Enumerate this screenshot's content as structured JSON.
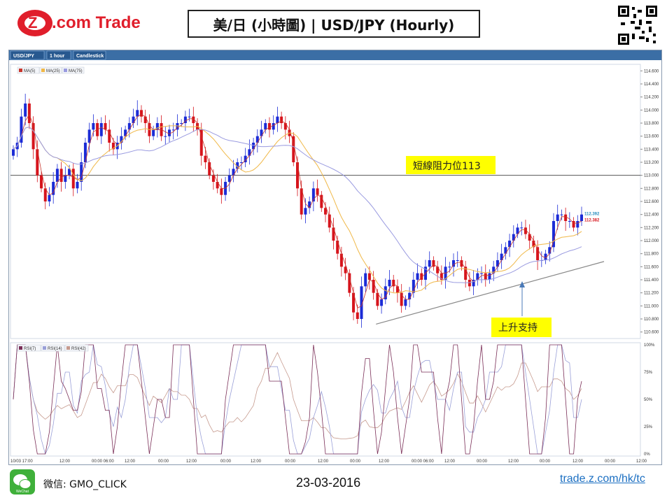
{
  "header": {
    "brand_logo_text": "Z.com Trade",
    "title": "美/日 (小時圖) | USD/JPY (Hourly)"
  },
  "toolbar": {
    "tabs": [
      "USD/JPY",
      "1 hour",
      "Candlestick"
    ]
  },
  "legend": {
    "ma": [
      "MA(5)",
      "MA(25)",
      "MA(75)"
    ],
    "rsi": [
      "RSI(7)",
      "RSI(14)",
      "RSI(42)"
    ]
  },
  "annotations": {
    "resistance": "短線阻力位113",
    "support": "上升支持"
  },
  "price_tags": {
    "upper": "112.392",
    "lower": "112.382"
  },
  "footer": {
    "wechat_label": "微信: GMO_CLICK",
    "wechat_icon_text": "WeChat",
    "date": "23-03-2016",
    "site": "trade.z.com/hk/tc"
  },
  "colors": {
    "up": "#1b2bd6",
    "down": "#d6141c",
    "ma5": "#c8362c",
    "ma25": "#f0b848",
    "ma75": "#9a9be0",
    "resistance_line": "#555555",
    "support_line": "#888888",
    "annotation_bg": "#ffff00",
    "price_tag_up": "#2a8fbf",
    "price_tag_down": "#d6141c",
    "rsi7": "#7a2e57",
    "rsi14": "#9aa0d8",
    "rsi42": "#c69a8e"
  },
  "chart_data": {
    "type": "candlestick",
    "title": "USD/JPY",
    "timeframe": "1 hour",
    "y_ticks": [
      "114.600",
      "114.400",
      "114.200",
      "114.000",
      "113.800",
      "113.600",
      "113.400",
      "113.200",
      "113.000",
      "112.800",
      "112.600",
      "112.400",
      "112.200",
      "112.000",
      "111.800",
      "111.600",
      "111.400",
      "111.200",
      "111.000",
      "110.800",
      "110.600"
    ],
    "y_range": [
      110.5,
      114.7
    ],
    "x_labels": [
      "10/03 17:00",
      "12:00",
      "00:00 06:00",
      "12:00",
      "00:00",
      "12:00",
      "00:00",
      "12:00",
      "00:00",
      "12:00",
      "00:00",
      "12:00",
      "00:00 06:00",
      "12:00",
      "00:00",
      "12:00",
      "00:00",
      "12:00",
      "00:00",
      "12:00"
    ],
    "resistance_level": 113.0,
    "support_line": {
      "from": [
        110.72,
        "bar 95"
      ],
      "to": [
        111.67,
        "bar 170"
      ]
    },
    "close": [
      113.4,
      113.5,
      113.9,
      114.1,
      113.8,
      113.4,
      113.0,
      112.8,
      112.6,
      112.7,
      112.9,
      113.1,
      112.9,
      113.0,
      113.1,
      112.8,
      112.9,
      113.2,
      113.5,
      113.7,
      113.8,
      113.6,
      113.8,
      113.7,
      113.5,
      113.4,
      113.5,
      113.6,
      113.7,
      113.8,
      113.9,
      114.0,
      113.9,
      113.8,
      113.6,
      113.7,
      113.8,
      113.6,
      113.6,
      113.7,
      113.7,
      113.8,
      113.8,
      113.9,
      113.9,
      113.8,
      113.7,
      113.3,
      113.2,
      113.0,
      112.9,
      112.8,
      112.7,
      112.9,
      113.0,
      113.1,
      113.2,
      113.2,
      113.3,
      113.4,
      113.5,
      113.6,
      113.7,
      113.8,
      113.7,
      113.8,
      113.9,
      113.8,
      113.7,
      113.6,
      113.2,
      112.8,
      112.4,
      112.5,
      112.6,
      112.8,
      112.7,
      112.5,
      112.4,
      112.2,
      112.0,
      111.8,
      111.6,
      111.5,
      111.2,
      110.9,
      110.8,
      111.3,
      111.5,
      111.4,
      111.2,
      111.0,
      111.1,
      111.3,
      111.4,
      111.3,
      111.2,
      111.0,
      111.1,
      111.2,
      111.4,
      111.5,
      111.4,
      111.6,
      111.7,
      111.6,
      111.5,
      111.4,
      111.6,
      111.6,
      111.7,
      111.7,
      111.6,
      111.4,
      111.3,
      111.4,
      111.5,
      111.5,
      111.4,
      111.5,
      111.6,
      111.7,
      111.8,
      111.9,
      112.0,
      112.1,
      112.2,
      112.2,
      112.1,
      112.0,
      111.9,
      111.7,
      111.7,
      111.8,
      111.9,
      112.3,
      112.4,
      112.4,
      112.3,
      112.3,
      112.2,
      112.3,
      112.4
    ]
  }
}
